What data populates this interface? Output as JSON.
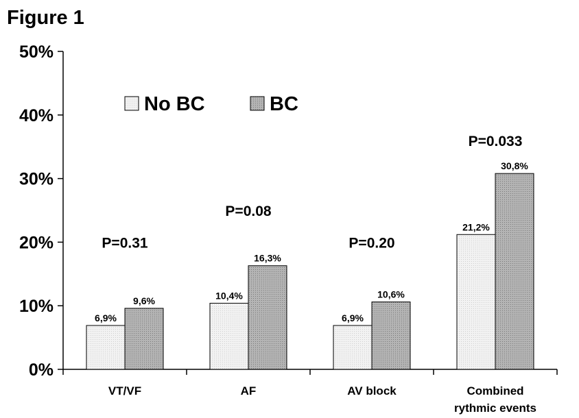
{
  "figure_title": "Figure 1",
  "chart_data": {
    "type": "bar",
    "title": "",
    "xlabel": "",
    "ylabel": "",
    "ylim": [
      0,
      50
    ],
    "yticks": [
      "0%",
      "10%",
      "20%",
      "30%",
      "40%",
      "50%"
    ],
    "legend_position": "top-left",
    "categories": [
      [
        "VT/VF"
      ],
      [
        "AF"
      ],
      [
        "AV block"
      ],
      [
        "Combined",
        "rythmic events"
      ]
    ],
    "series": [
      {
        "name": "No BC",
        "color": "#ededed",
        "pattern": "light-dotted",
        "values": [
          6.9,
          10.4,
          6.9,
          21.2
        ],
        "labels": [
          "6,9%",
          "10,4%",
          "6,9%",
          "21,2%"
        ]
      },
      {
        "name": "BC",
        "color": "#a9a9a9",
        "pattern": "dark-dotted",
        "values": [
          9.6,
          16.3,
          10.6,
          30.8
        ],
        "labels": [
          "9,6%",
          "16,3%",
          "10,6%",
          "30,8%"
        ]
      }
    ],
    "annotations": [
      {
        "text": "P=0.31",
        "category_index": 0,
        "y": 20
      },
      {
        "text": "P=0.08",
        "category_index": 1,
        "y": 25
      },
      {
        "text": "P=0.20",
        "category_index": 2,
        "y": 20
      },
      {
        "text": "P=0.033",
        "category_index": 3,
        "y": 36
      }
    ]
  }
}
